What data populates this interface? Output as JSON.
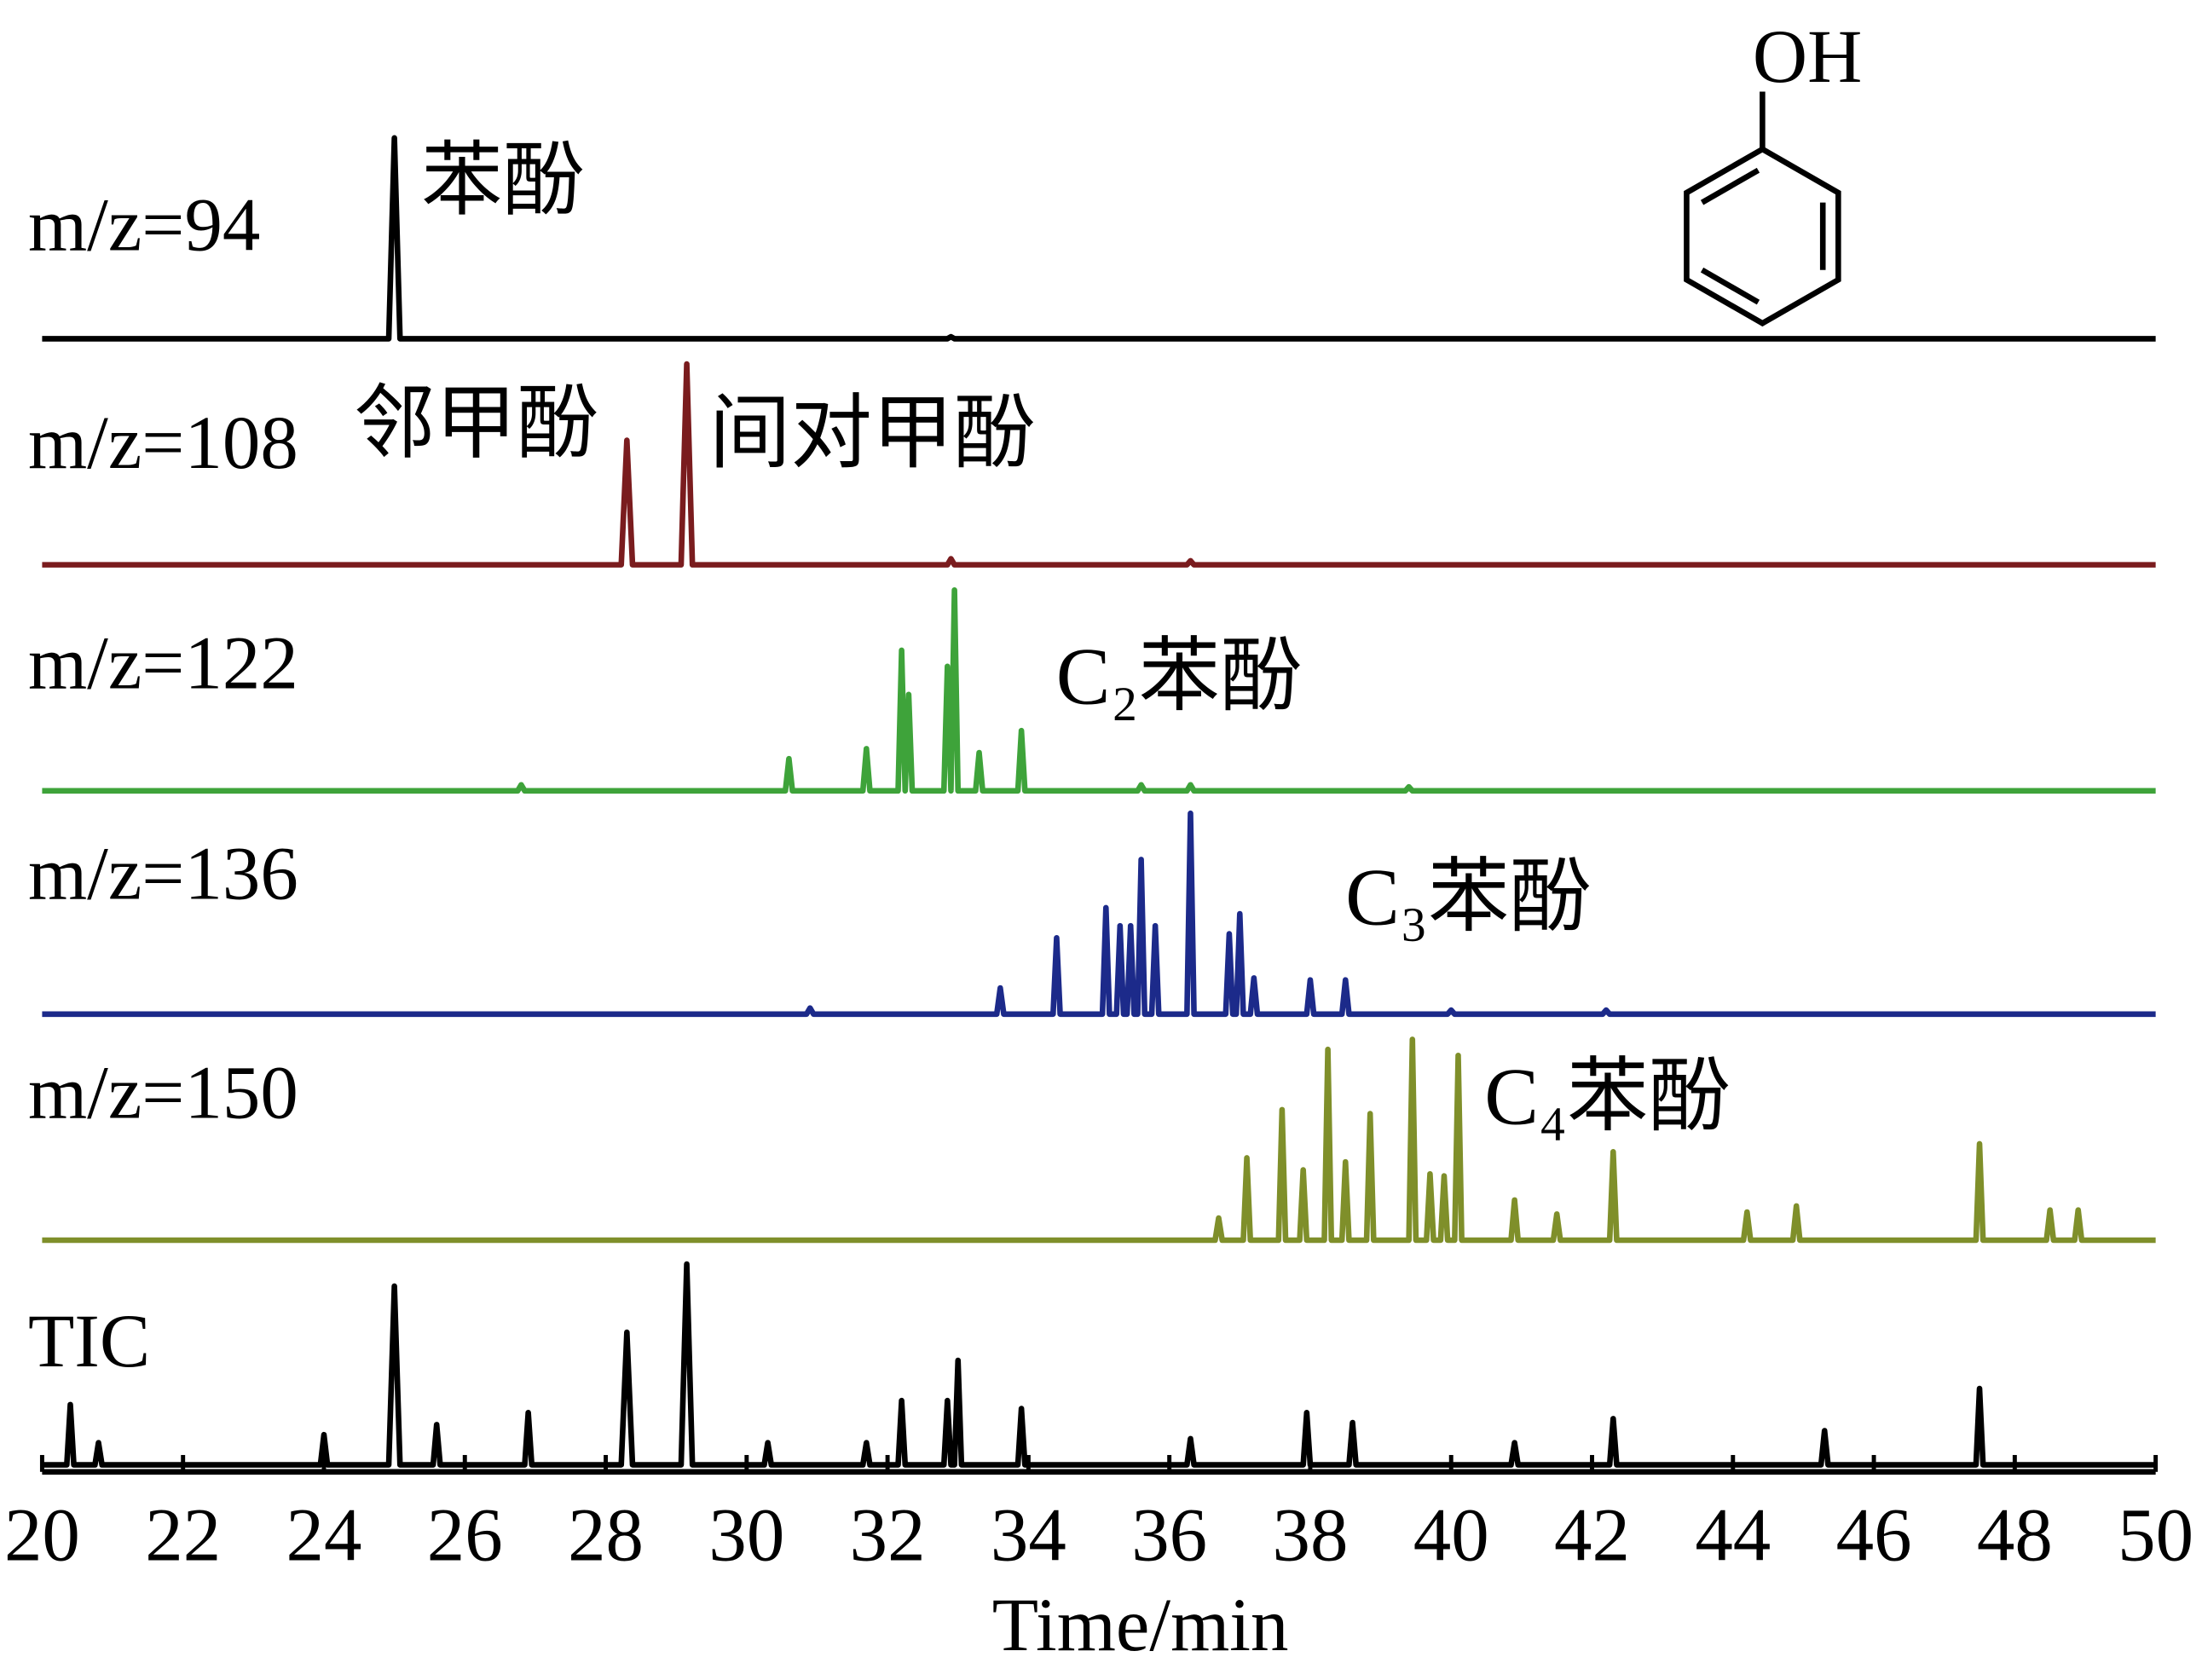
{
  "chart_data": {
    "type": "line",
    "xlabel": "Time/min",
    "xlim": [
      20,
      50
    ],
    "xticks": [
      20,
      22,
      24,
      26,
      28,
      30,
      32,
      34,
      36,
      38,
      40,
      42,
      44,
      46,
      48,
      50
    ],
    "ylim": [
      0,
      100
    ],
    "series": [
      {
        "name": "m/z=94",
        "color": "#000000",
        "x": [
          20,
          24.92,
          25,
          25.08,
          32.85,
          32.9,
          32.95,
          50
        ],
        "values": [
          0,
          0,
          100,
          0,
          0,
          1,
          0,
          0
        ]
      },
      {
        "name": "m/z=108",
        "color": "#7a1c1e",
        "x": [
          20,
          28.22,
          28.3,
          28.38,
          29.07,
          29.15,
          29.23,
          32.85,
          32.9,
          32.95,
          36.25,
          36.3,
          36.35,
          50
        ],
        "values": [
          0,
          0,
          62,
          0,
          0,
          100,
          0,
          0,
          3,
          0,
          0,
          2,
          0,
          0
        ]
      },
      {
        "name": "m/z=122",
        "color": "#3ea33a",
        "x": [
          20,
          26.75,
          26.8,
          26.85,
          30.55,
          30.6,
          30.65,
          31.65,
          31.7,
          31.75,
          32.15,
          32.2,
          32.25,
          32.25,
          32.3,
          32.35,
          32.8,
          32.85,
          32.9,
          32.9,
          32.95,
          33.0,
          33.25,
          33.3,
          33.35,
          33.85,
          33.9,
          33.95,
          35.55,
          35.6,
          35.65,
          36.25,
          36.3,
          36.35,
          39.35,
          39.4,
          39.45,
          50
        ],
        "values": [
          0,
          0,
          3,
          0,
          0,
          16,
          0,
          0,
          21,
          0,
          0,
          70,
          0,
          0,
          48,
          0,
          0,
          62,
          0,
          0,
          100,
          0,
          0,
          19,
          0,
          0,
          30,
          0,
          0,
          3,
          0,
          0,
          3,
          0,
          0,
          2,
          0,
          0
        ]
      },
      {
        "name": "m/z=136",
        "color": "#1c2a8a",
        "x": [
          20,
          30.85,
          30.9,
          30.95,
          33.55,
          33.6,
          33.65,
          34.35,
          34.4,
          34.45,
          35.05,
          35.1,
          35.15,
          35.25,
          35.3,
          35.35,
          35.4,
          35.45,
          35.5,
          35.55,
          35.6,
          35.65,
          35.75,
          35.8,
          35.85,
          36.25,
          36.3,
          36.35,
          36.8,
          36.85,
          36.9,
          36.95,
          37.0,
          37.05,
          37.15,
          37.2,
          37.25,
          37.95,
          38.0,
          38.05,
          38.45,
          38.5,
          38.55,
          39.95,
          40.0,
          40.05,
          42.15,
          42.2,
          42.25,
          50
        ],
        "values": [
          0,
          0,
          3,
          0,
          0,
          13,
          0,
          0,
          38,
          0,
          0,
          53,
          0,
          0,
          44,
          0,
          0,
          44,
          0,
          0,
          77,
          0,
          0,
          44,
          0,
          0,
          100,
          0,
          0,
          40,
          0,
          0,
          50,
          0,
          0,
          18,
          0,
          0,
          17,
          0,
          0,
          17,
          0,
          0,
          2,
          0,
          0,
          2,
          0,
          0
        ]
      },
      {
        "name": "m/z=150",
        "color": "#7f8f2a",
        "x": [
          20,
          36.65,
          36.7,
          36.75,
          37.05,
          37.1,
          37.15,
          37.55,
          37.6,
          37.65,
          37.85,
          37.9,
          37.95,
          38.2,
          38.25,
          38.3,
          38.45,
          38.5,
          38.55,
          38.8,
          38.85,
          38.9,
          39.4,
          39.45,
          39.5,
          39.65,
          39.7,
          39.75,
          39.85,
          39.9,
          39.95,
          40.05,
          40.1,
          40.15,
          40.85,
          40.9,
          40.95,
          41.45,
          41.5,
          41.55,
          42.25,
          42.3,
          42.35,
          44.15,
          44.2,
          44.25,
          44.85,
          44.9,
          44.95,
          47.45,
          47.5,
          47.55,
          48.45,
          48.5,
          48.55,
          48.85,
          48.9,
          48.95,
          50
        ],
        "values": [
          0,
          0,
          11,
          0,
          0,
          41,
          0,
          0,
          65,
          0,
          0,
          35,
          0,
          0,
          95,
          0,
          0,
          39,
          0,
          0,
          63,
          0,
          0,
          100,
          0,
          0,
          33,
          0,
          0,
          32,
          0,
          0,
          92,
          0,
          0,
          20,
          0,
          0,
          13,
          0,
          0,
          44,
          0,
          0,
          14,
          0,
          0,
          17,
          0,
          0,
          48,
          0,
          0,
          15,
          0,
          0,
          15,
          0,
          0
        ]
      },
      {
        "name": "TIC",
        "color": "#000000",
        "x": [
          20,
          20.35,
          20.4,
          20.45,
          20.75,
          20.8,
          20.85,
          23.95,
          24.0,
          24.05,
          24.92,
          25.0,
          25.08,
          25.55,
          25.6,
          25.65,
          26.85,
          26.9,
          26.95,
          28.22,
          28.3,
          28.38,
          29.07,
          29.15,
          29.23,
          30.25,
          30.3,
          30.35,
          31.65,
          31.7,
          31.75,
          32.15,
          32.2,
          32.25,
          32.8,
          32.85,
          32.9,
          32.95,
          33.0,
          33.05,
          33.85,
          33.9,
          33.95,
          36.25,
          36.3,
          36.35,
          37.9,
          37.95,
          38.0,
          38.55,
          38.6,
          38.65,
          40.85,
          40.9,
          40.95,
          42.25,
          42.3,
          42.35,
          45.25,
          45.3,
          45.35,
          47.45,
          47.5,
          47.55,
          50
        ],
        "values": [
          0,
          0,
          30,
          0,
          0,
          11,
          0,
          0,
          15,
          0,
          0,
          89,
          0,
          0,
          20,
          0,
          0,
          26,
          0,
          0,
          66,
          0,
          0,
          100,
          0,
          0,
          11,
          0,
          0,
          11,
          0,
          0,
          32,
          0,
          0,
          32,
          0,
          0,
          52,
          0,
          0,
          28,
          0,
          0,
          13,
          0,
          0,
          26,
          0,
          0,
          21,
          0,
          0,
          11,
          0,
          0,
          23,
          0,
          0,
          17,
          0,
          0,
          38,
          0,
          0
        ]
      }
    ],
    "annotations": [
      "苯酚",
      "邻甲酚",
      "间对甲酚",
      "C₂苯酚",
      "C₃苯酚",
      "C₄苯酚"
    ]
  },
  "structure": {
    "label": "OH"
  }
}
